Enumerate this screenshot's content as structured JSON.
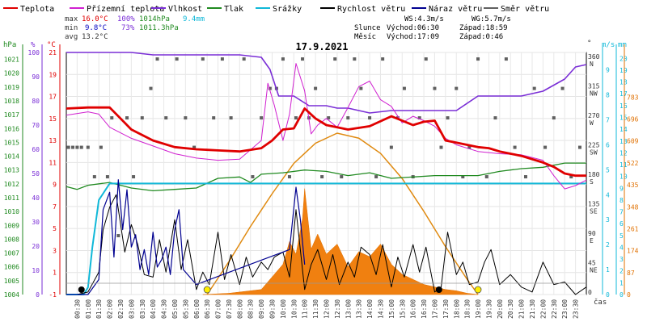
{
  "chart_data": {
    "type": "line",
    "title": "17.9.2021",
    "time_unit_label": "čas",
    "legend": [
      {
        "name": "Teplota",
        "color": "#e00000"
      },
      {
        "name": "Přízemní teplota",
        "color": "#d020d0"
      },
      {
        "name": "Vlhkost",
        "color": "#7a2ed6"
      },
      {
        "name": "Tlak",
        "color": "#208a20"
      },
      {
        "name": "Srážky",
        "color": "#10b8d8"
      },
      {
        "name": "Rychlost větru",
        "color": "#000000"
      },
      {
        "name": "Náraz větru",
        "color": "#000090"
      },
      {
        "name": "Směr větru",
        "color": "#606060"
      }
    ],
    "stats": {
      "max": {
        "label": "max",
        "temp": "16.0°C",
        "hum": "100%",
        "press": "1014hPa",
        "rain": "9.4mm"
      },
      "min": {
        "label": "min",
        "temp": "9.8°C",
        "hum": "73%",
        "press": "1011.3hPa"
      },
      "avg": {
        "label": "avg",
        "temp": "13.2°C"
      }
    },
    "wind_summary": {
      "ws": "WS:4.3m/s",
      "wg": "WG:5.7m/s"
    },
    "sun": {
      "label": "Slunce",
      "rise": "Východ:06:30",
      "set": "Západ:18:59"
    },
    "moon": {
      "label": "Měsíc",
      "rise": "Východ:17:09",
      "set": "Západ:0:46"
    },
    "axes": {
      "hpa": {
        "label": "hPa",
        "color": "#208a20",
        "ticks": [
          "1021",
          "1020",
          "1019",
          "1018",
          "1017",
          "1016",
          "1015",
          "1014",
          "1013",
          "1012",
          "1011",
          "1010",
          "1009",
          "1008",
          "1007",
          "1006",
          "1005",
          "1004"
        ],
        "range": [
          1004,
          1021.5
        ]
      },
      "percent": {
        "label": "%",
        "color": "#7a2ed6",
        "ticks": [
          "100",
          "90",
          "80",
          "70",
          "60",
          "50",
          "40",
          "30",
          "20",
          "10",
          "0"
        ],
        "range": [
          0,
          100
        ]
      },
      "celsius": {
        "label": "°C",
        "color": "#e00000",
        "ticks": [
          "21",
          "19",
          "17",
          "15",
          "13",
          "11",
          "9",
          "7",
          "5",
          "3",
          "1",
          "-1"
        ],
        "range": [
          -1,
          21
        ]
      },
      "wind_dir": {
        "label": "°",
        "ticks": [
          {
            "v": "360",
            "d": "N"
          },
          {
            "v": "315",
            "d": "NW"
          },
          {
            "v": "270",
            "d": "W"
          },
          {
            "v": "225",
            "d": "SW"
          },
          {
            "v": "180",
            "d": "S"
          },
          {
            "v": "135",
            "d": "SE"
          },
          {
            "v": "90",
            "d": "E"
          },
          {
            "v": "45",
            "d": "NE"
          },
          {
            "v": "0",
            "d": ""
          }
        ]
      },
      "wind_speed": {
        "label": "m/s",
        "color": "#10b8d8",
        "ticks": [
          "9",
          "8",
          "7",
          "6",
          "5",
          "4",
          "3",
          "2",
          "1",
          "0"
        ],
        "range": [
          0,
          9.7
        ]
      },
      "rain": {
        "label": "mm",
        "color": "#10b8d8",
        "ticks": [
          "20",
          "19",
          "18",
          "17",
          "16",
          "15",
          "14",
          "13",
          "12",
          "11",
          "10",
          "9",
          "8",
          "7",
          "6",
          "5",
          "4",
          "3",
          "2",
          "1",
          "0"
        ],
        "range": [
          0,
          20
        ]
      },
      "radiation": {
        "color": "#e07000",
        "ticks": [
          "783",
          "696",
          "609",
          "522",
          "435",
          "348",
          "261",
          "174",
          "87",
          "0"
        ],
        "range": [
          0,
          783
        ]
      },
      "time": [
        "00:30",
        "01:00",
        "01:30",
        "02:00",
        "02:30",
        "03:00",
        "03:30",
        "04:00",
        "04:30",
        "05:00",
        "05:30",
        "06:00",
        "06:30",
        "07:00",
        "07:30",
        "08:00",
        "08:30",
        "09:00",
        "09:30",
        "10:00",
        "10:30",
        "11:00",
        "11:30",
        "12:00",
        "12:30",
        "13:00",
        "13:30",
        "14:00",
        "14:30",
        "15:00",
        "15:30",
        "16:00",
        "16:30",
        "17:00",
        "17:30",
        "18:00",
        "18:30",
        "19:00",
        "19:30",
        "20:00",
        "20:30",
        "21:00",
        "21:30",
        "22:00",
        "22:30",
        "23:00",
        "23:30"
      ]
    },
    "series": [
      {
        "name": "Teplota",
        "unit": "°C",
        "x": [
          0,
          1,
          2,
          2.5,
          3,
          4,
          5,
          6,
          7,
          8,
          9,
          9.5,
          10,
          10.5,
          11,
          11.5,
          12,
          13,
          14,
          15,
          15.5,
          16,
          16.5,
          17,
          17.5,
          18,
          18.5,
          19,
          19.5,
          20,
          21,
          22,
          22.5,
          23,
          23.5,
          24
        ],
        "values": [
          15.9,
          16.0,
          16.0,
          15.0,
          14.0,
          13.0,
          12.4,
          12.2,
          12.1,
          12.0,
          12.3,
          13.0,
          14.0,
          14.1,
          15.9,
          15.0,
          14.4,
          14.0,
          14.3,
          15.2,
          14.8,
          14.4,
          14.7,
          14.8,
          13.0,
          12.8,
          12.6,
          12.4,
          12.3,
          12.0,
          11.6,
          11.0,
          10.6,
          10.0,
          9.8,
          9.8
        ]
      },
      {
        "name": "Přízemní teplota",
        "unit": "°C",
        "x": [
          0,
          1,
          1.5,
          2,
          3,
          4,
          5,
          6,
          7,
          8,
          9,
          9.3,
          9.6,
          10,
          10.3,
          10.6,
          11,
          11.3,
          11.6,
          12,
          12.5,
          13,
          13.5,
          14,
          14.5,
          15,
          15.5,
          16,
          16.5,
          17,
          17.5,
          18,
          19,
          20,
          21,
          22,
          22.5,
          23,
          23.5,
          24
        ],
        "values": [
          15.3,
          15.6,
          15.4,
          14.2,
          13.2,
          12.5,
          11.8,
          11.4,
          11.2,
          11.3,
          13.0,
          18.2,
          16.2,
          13.0,
          15.4,
          20.0,
          17.5,
          13.6,
          14.4,
          15.0,
          14.2,
          16.0,
          17.9,
          18.4,
          16.7,
          16.1,
          14.6,
          15.2,
          14.8,
          14.3,
          13.2,
          12.6,
          12.0,
          11.8,
          11.7,
          11.2,
          9.8,
          8.6,
          8.9,
          9.4
        ]
      },
      {
        "name": "Vlhkost",
        "unit": "%",
        "x": [
          0,
          3,
          4,
          5,
          6,
          7,
          8,
          9,
          9.4,
          9.8,
          10.5,
          11.2,
          11.6,
          12,
          12.5,
          13,
          14,
          15,
          16,
          17,
          18,
          19,
          20,
          21,
          22,
          23,
          23.5,
          24
        ],
        "values": [
          100,
          100,
          99,
          99,
          99,
          99,
          99,
          98,
          93,
          82,
          82,
          78,
          78,
          78,
          77,
          77,
          75,
          76,
          76,
          76,
          76,
          82,
          82,
          82,
          84,
          89,
          94,
          95
        ]
      },
      {
        "name": "Tlak",
        "unit": "hPa",
        "x": [
          0,
          0.5,
          1,
          2,
          3,
          4,
          5,
          6,
          7,
          8,
          8.5,
          9,
          10,
          11,
          12,
          13,
          14,
          15,
          16,
          17,
          18,
          19,
          20,
          21,
          22,
          23,
          24
        ],
        "values": [
          1011.8,
          1011.6,
          1011.9,
          1012.1,
          1011.7,
          1011.5,
          1011.6,
          1011.7,
          1012.4,
          1012.5,
          1012.1,
          1012.7,
          1012.8,
          1013.0,
          1012.9,
          1012.6,
          1012.8,
          1012.4,
          1012.5,
          1012.6,
          1012.6,
          1012.6,
          1012.9,
          1013.1,
          1013.2,
          1013.5,
          1013.5
        ]
      },
      {
        "name": "Srážky",
        "unit": "mm",
        "x": [
          0,
          0.8,
          1.0,
          1.2,
          1.5,
          2.0,
          24
        ],
        "values": [
          0,
          0.0,
          0.6,
          4.0,
          8.0,
          9.4,
          9.4
        ]
      },
      {
        "name": "Rychlost větru",
        "unit": "m/s",
        "x": [
          0,
          0.5,
          1,
          1.5,
          1.7,
          2,
          2.3,
          2.7,
          3,
          3.3,
          3.6,
          4,
          4.3,
          4.6,
          5,
          5.3,
          5.6,
          6,
          6.3,
          6.6,
          7,
          7.3,
          7.6,
          8,
          8.3,
          8.6,
          9,
          9.3,
          9.6,
          10,
          10.3,
          10.6,
          11,
          11.3,
          11.6,
          12,
          12.3,
          12.6,
          13,
          13.3,
          13.6,
          14,
          14.3,
          14.6,
          15,
          15.3,
          15.6,
          16,
          16.3,
          16.6,
          17,
          17.3,
          17.6,
          18,
          18.3,
          18.6,
          19,
          19.3,
          19.6,
          20,
          20.5,
          21,
          21.5,
          22,
          22.5,
          23,
          23.5,
          24
        ],
        "values": [
          0,
          0,
          0.1,
          0.9,
          2.6,
          3.5,
          4.0,
          1.7,
          2.8,
          2.0,
          0.8,
          0.7,
          2.2,
          0.9,
          3.0,
          1.0,
          2.2,
          0.2,
          0.9,
          0.4,
          2.5,
          0.6,
          1.6,
          0.4,
          1.5,
          0.7,
          1.3,
          1.0,
          1.5,
          1.7,
          0.7,
          3.4,
          0.2,
          1.2,
          1.8,
          0.6,
          1.6,
          0.4,
          1.3,
          0.7,
          1.9,
          1.6,
          0.8,
          2.0,
          0.3,
          1.5,
          0.7,
          2.0,
          0.9,
          1.9,
          0.1,
          0.3,
          2.5,
          0.8,
          1.3,
          0.4,
          0.5,
          1.3,
          1.8,
          0.4,
          0.8,
          0.3,
          0.1,
          1.3,
          0.4,
          0.5,
          0,
          0.3
        ]
      },
      {
        "name": "Náraz větru",
        "unit": "m/s",
        "x": [
          0,
          1,
          1.5,
          1.7,
          2,
          2.2,
          2.4,
          2.6,
          2.8,
          3,
          3.2,
          3.4,
          3.6,
          3.8,
          4,
          4.2,
          4.4,
          4.6,
          4.8,
          5,
          5.2,
          5.4,
          6,
          10.3,
          10.6,
          10.8,
          11
        ],
        "values": [
          0,
          0,
          0.6,
          3.4,
          4.1,
          1.5,
          4.6,
          2.6,
          4.2,
          1.9,
          2.4,
          1.0,
          1.8,
          0.8,
          2.5,
          1.1,
          1.4,
          1.9,
          0.8,
          2.6,
          3.4,
          1.0,
          0.4,
          1.8,
          4.3,
          3.0,
          1.2
        ]
      },
      {
        "name": "Směr větru",
        "unit": "°",
        "type": "scatter",
        "x": [
          0.1,
          0.3,
          0.5,
          0.7,
          1.0,
          1.3,
          1.6,
          1.9,
          2.1,
          2.4,
          2.8,
          3.1,
          3.5,
          3.9,
          4.2,
          4.6,
          5.1,
          5.5,
          5.9,
          6.3,
          6.8,
          7.2,
          7.6,
          8.2,
          8.6,
          9.0,
          9.4,
          9.7,
          10.0,
          10.3,
          10.6,
          10.9,
          11.2,
          11.5,
          11.8,
          12.1,
          12.4,
          12.7,
          13.0,
          13.3,
          13.6,
          14.0,
          14.3,
          14.6,
          15.0,
          15.3,
          15.6,
          16.0,
          16.3,
          16.6,
          17.0,
          17.3,
          17.6,
          18.0,
          18.3,
          18.6,
          19.0,
          19.4,
          19.8,
          20.3,
          20.7,
          21.2,
          21.6,
          22.1,
          22.5,
          22.9,
          23.3,
          23.7
        ],
        "values": [
          225,
          225,
          225,
          225,
          225,
          180,
          225,
          180,
          270,
          90,
          270,
          180,
          270,
          315,
          360,
          270,
          360,
          270,
          225,
          360,
          270,
          360,
          270,
          360,
          180,
          270,
          315,
          315,
          360,
          180,
          270,
          360,
          270,
          315,
          180,
          270,
          360,
          180,
          270,
          360,
          315,
          270,
          180,
          360,
          225,
          270,
          315,
          180,
          270,
          360,
          315,
          225,
          270,
          315,
          180,
          225,
          360,
          180,
          270,
          360,
          225,
          180,
          315,
          225,
          270,
          315,
          180,
          225
        ]
      },
      {
        "name": "Radiace",
        "unit": "",
        "type": "area",
        "x": [
          6.3,
          7.5,
          9,
          10,
          10.3,
          10.6,
          10.9,
          11,
          11.3,
          11.6,
          12,
          12.5,
          13,
          13.5,
          14,
          14.5,
          15,
          15.5,
          16,
          16.5,
          17,
          17.5,
          18,
          18.5,
          19
        ],
        "values": [
          0,
          5,
          20,
          120,
          210,
          160,
          300,
          420,
          180,
          240,
          160,
          200,
          110,
          170,
          150,
          200,
          120,
          80,
          60,
          40,
          30,
          20,
          15,
          5,
          0
        ]
      },
      {
        "name": "Sluneční křivka",
        "unit": "",
        "type": "line",
        "x": [
          6.5,
          7.5,
          8.5,
          9.5,
          10.5,
          11.5,
          12.5,
          13.5,
          14.5,
          15.5,
          16.5,
          17.5,
          18.5,
          19.0
        ],
        "values": [
          0,
          130,
          270,
          400,
          520,
          600,
          640,
          620,
          560,
          460,
          330,
          190,
          60,
          0
        ]
      }
    ],
    "markers": [
      {
        "kind": "moon",
        "x": 0.7
      },
      {
        "kind": "moon",
        "x": 17.2
      },
      {
        "kind": "sun",
        "x": 6.5
      },
      {
        "kind": "sun",
        "x": 19.0
      }
    ],
    "grid": true
  }
}
